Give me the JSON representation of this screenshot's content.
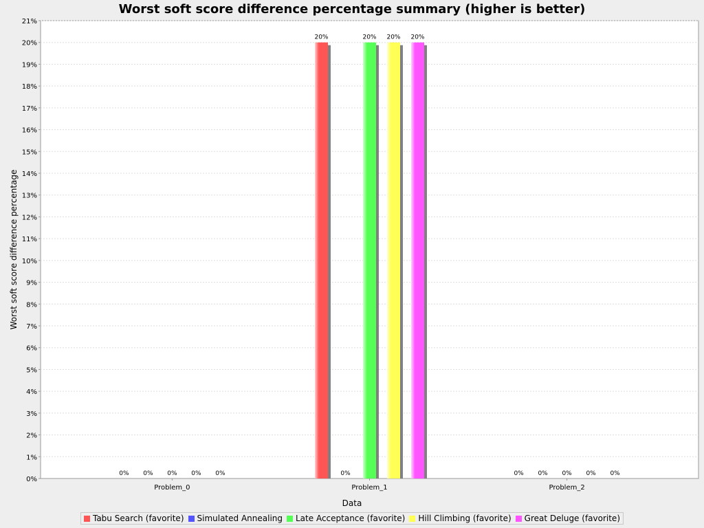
{
  "chart_data": {
    "type": "bar",
    "title": "Worst soft score difference percentage summary (higher is better)",
    "xlabel": "Data",
    "ylabel": "Worst soft score difference percentage",
    "categories": [
      "Problem_0",
      "Problem_1",
      "Problem_2"
    ],
    "ylim": [
      0,
      21
    ],
    "y_ticks": [
      "0%",
      "1%",
      "2%",
      "3%",
      "4%",
      "5%",
      "6%",
      "7%",
      "8%",
      "9%",
      "10%",
      "11%",
      "12%",
      "13%",
      "14%",
      "15%",
      "16%",
      "17%",
      "18%",
      "19%",
      "20%",
      "21%"
    ],
    "grid": true,
    "legend_position": "bottom",
    "series": [
      {
        "name": "Tabu Search (favorite)",
        "color": "#ff5555",
        "values": [
          0,
          20,
          0
        ],
        "labels": [
          "0%",
          "20%",
          "0%"
        ]
      },
      {
        "name": "Simulated Annealing",
        "color": "#5555ff",
        "values": [
          0,
          0,
          0
        ],
        "labels": [
          "0%",
          "0%",
          "0%"
        ]
      },
      {
        "name": "Late Acceptance (favorite)",
        "color": "#55ff55",
        "values": [
          0,
          20,
          0
        ],
        "labels": [
          "0%",
          "20%",
          "0%"
        ]
      },
      {
        "name": "Hill Climbing (favorite)",
        "color": "#ffff55",
        "values": [
          0,
          20,
          0
        ],
        "labels": [
          "0%",
          "20%",
          "0%"
        ]
      },
      {
        "name": "Great Deluge (favorite)",
        "color": "#ff55ff",
        "values": [
          0,
          20,
          0
        ],
        "labels": [
          "0%",
          "20%",
          "0%"
        ]
      }
    ]
  }
}
